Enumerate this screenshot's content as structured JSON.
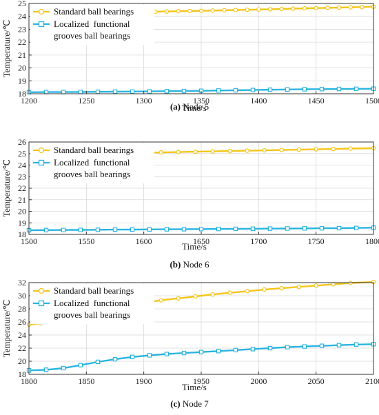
{
  "colors": {
    "standard": "#f5c518",
    "localized": "#2ab4e0",
    "grid": "#d8d8d8"
  },
  "chart_data": [
    {
      "type": "line",
      "caption": {
        "label": "(a)",
        "text": " Node 5"
      },
      "xlabel": "Time/s",
      "ylabel": "Temperature/℃",
      "xlim": [
        1200,
        1500
      ],
      "ylim": [
        18,
        25
      ],
      "xticks": [
        1200,
        1250,
        1300,
        1350,
        1400,
        1450,
        1500
      ],
      "yticks": [
        18,
        19,
        20,
        21,
        22,
        23,
        24,
        25
      ],
      "grid": true,
      "legend": "top-left",
      "series": [
        {
          "name": "Standard ball bearings",
          "marker": "circle",
          "color": "#f5c518",
          "x": [
            1300,
            1310,
            1320,
            1330,
            1340,
            1350,
            1360,
            1370,
            1380,
            1390,
            1400,
            1410,
            1420,
            1430,
            1440,
            1450,
            1460,
            1470,
            1480,
            1490,
            1500
          ],
          "y": [
            24.35,
            24.36,
            24.38,
            24.4,
            24.41,
            24.43,
            24.45,
            24.47,
            24.49,
            24.51,
            24.53,
            24.55,
            24.57,
            24.6,
            24.62,
            24.64,
            24.66,
            24.68,
            24.7,
            24.72,
            24.75
          ]
        },
        {
          "name": "Localized  functional\ngrooves ball bearings",
          "marker": "square",
          "color": "#2ab4e0",
          "x": [
            1200,
            1215,
            1230,
            1245,
            1260,
            1275,
            1290,
            1305,
            1320,
            1335,
            1350,
            1365,
            1380,
            1395,
            1410,
            1425,
            1440,
            1455,
            1470,
            1485,
            1500
          ],
          "y": [
            18.12,
            18.13,
            18.13,
            18.14,
            18.15,
            18.16,
            18.17,
            18.18,
            18.2,
            18.21,
            18.23,
            18.25,
            18.27,
            18.29,
            18.31,
            18.33,
            18.35,
            18.36,
            18.37,
            18.38,
            18.39
          ]
        }
      ]
    },
    {
      "type": "line",
      "caption": {
        "label": "(b)",
        "text": " Node 6"
      },
      "xlabel": "Time/s",
      "ylabel": "Temperature/℃",
      "xlim": [
        1500,
        1800
      ],
      "ylim": [
        18,
        26
      ],
      "xticks": [
        1500,
        1550,
        1600,
        1650,
        1700,
        1750,
        1800
      ],
      "yticks": [
        18,
        19,
        20,
        21,
        22,
        23,
        24,
        25,
        26
      ],
      "grid": true,
      "legend": "top-left",
      "series": [
        {
          "name": "Standard ball bearings",
          "marker": "circle",
          "color": "#f5c518",
          "x": [
            1603,
            1615,
            1630,
            1645,
            1660,
            1675,
            1690,
            1705,
            1720,
            1735,
            1750,
            1765,
            1780,
            1800
          ],
          "y": [
            25.08,
            25.1,
            25.13,
            25.16,
            25.19,
            25.22,
            25.25,
            25.28,
            25.31,
            25.34,
            25.37,
            25.4,
            25.43,
            25.46
          ]
        },
        {
          "name": "Localized  functional\ngrooves ball bearings",
          "marker": "square",
          "color": "#2ab4e0",
          "x": [
            1500,
            1515,
            1530,
            1545,
            1560,
            1575,
            1590,
            1605,
            1620,
            1635,
            1650,
            1665,
            1680,
            1695,
            1710,
            1725,
            1740,
            1755,
            1770,
            1785,
            1800
          ],
          "y": [
            18.36,
            18.37,
            18.38,
            18.39,
            18.4,
            18.41,
            18.42,
            18.43,
            18.44,
            18.45,
            18.46,
            18.47,
            18.48,
            18.49,
            18.5,
            18.51,
            18.52,
            18.53,
            18.54,
            18.56,
            18.58
          ]
        }
      ]
    },
    {
      "type": "line",
      "caption": {
        "label": "(c)",
        "text": " Node 7"
      },
      "xlabel": "Time/s",
      "ylabel": "Temperature/℃",
      "xlim": [
        1800,
        2100
      ],
      "ylim": [
        18,
        32
      ],
      "xticks": [
        1800,
        1850,
        1900,
        1950,
        2000,
        2050,
        2100
      ],
      "yticks": [
        18,
        20,
        22,
        24,
        26,
        28,
        30,
        32
      ],
      "grid": true,
      "legend": "top-left",
      "series": [
        {
          "name": "Standard ball bearings",
          "marker": "circle",
          "color": "#f5c518",
          "x": [
            1800,
            1810,
            1820
          ],
          "y": [
            25.6,
            25.8,
            26.0
          ],
          "x2": [
            1903,
            1915,
            1930,
            1945,
            1960,
            1975,
            1990,
            2005,
            2020,
            2035,
            2050,
            2065,
            2080,
            2100
          ],
          "y2": [
            29.0,
            29.3,
            29.6,
            29.9,
            30.2,
            30.45,
            30.7,
            30.95,
            31.15,
            31.35,
            31.55,
            31.75,
            31.95,
            32.1
          ]
        },
        {
          "name": "Localized  functional\ngrooves ball bearings",
          "marker": "square",
          "color": "#2ab4e0",
          "x": [
            1800,
            1815,
            1830,
            1845,
            1860,
            1875,
            1890,
            1905,
            1920,
            1935,
            1950,
            1965,
            1980,
            1995,
            2010,
            2025,
            2040,
            2055,
            2070,
            2085,
            2100
          ],
          "y": [
            18.6,
            18.7,
            18.95,
            19.4,
            19.9,
            20.3,
            20.65,
            20.9,
            21.1,
            21.25,
            21.4,
            21.55,
            21.7,
            21.85,
            22.0,
            22.15,
            22.25,
            22.35,
            22.45,
            22.55,
            22.6
          ]
        }
      ]
    }
  ]
}
